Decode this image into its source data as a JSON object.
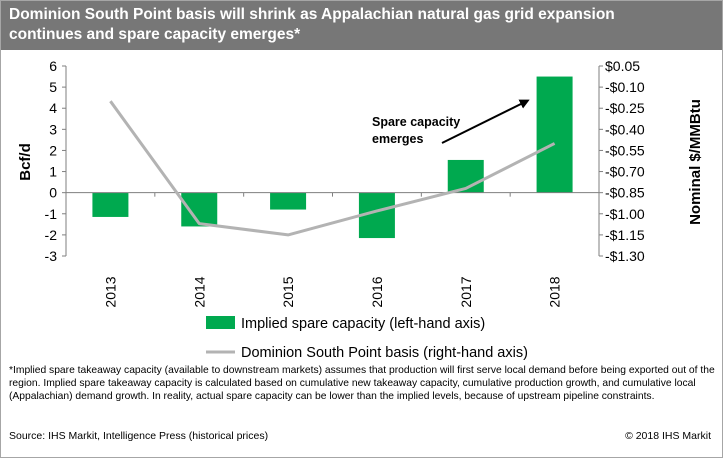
{
  "header": {
    "title_line1": "Dominion South Point basis will shrink as Appalachian natural gas grid expansion",
    "title_line2": "continues and spare capacity emerges*"
  },
  "chart_data": {
    "type": "bar",
    "categories": [
      "2013",
      "2014",
      "2015",
      "2016",
      "2017",
      "2018"
    ],
    "series": [
      {
        "name": "Implied spare capacity (left-hand axis)",
        "type": "bar",
        "axis": "left",
        "color": "#00a94f",
        "values": [
          -1.15,
          -1.6,
          -0.8,
          -2.15,
          1.55,
          5.5
        ]
      },
      {
        "name": "Dominion South Point basis (right-hand axis)",
        "type": "line",
        "axis": "right",
        "color": "#b3b3b3",
        "values": [
          -0.2,
          -1.07,
          -1.15,
          -0.98,
          -0.82,
          -0.5
        ]
      }
    ],
    "left_axis": {
      "label": "Bcf/d",
      "range": [
        -3,
        6
      ],
      "ticks": [
        "6",
        "5",
        "4",
        "3",
        "2",
        "1",
        "0",
        "-1",
        "-2",
        "-3"
      ]
    },
    "right_axis": {
      "label": "Nominal $/MMBtu",
      "range": [
        -1.3,
        0.05
      ],
      "ticks": [
        "$0.05",
        "-$0.10",
        "-$0.25",
        "-$0.40",
        "-$0.55",
        "-$0.70",
        "-$0.85",
        "-$1.00",
        "-$1.15",
        "-$1.30"
      ]
    },
    "annotation": {
      "line1": "Spare capacity",
      "line2": "emerges"
    },
    "legend_placement": "bottom",
    "grid": false
  },
  "footnote": "*Implied spare takeaway capacity (available to downstream markets) assumes that production will first serve local demand before being exported out of the region. Implied spare takeaway capacity is calculated based on cumulative new takeaway capacity, cumulative production growth, and cumulative local (Appalachian) demand growth. In reality, actual spare capacity can be lower than the implied levels, because of upstream pipeline constraints.",
  "source": "Source: IHS Markit, Intelligence Press (historical prices)",
  "copyright": "© 2018 IHS Markit"
}
